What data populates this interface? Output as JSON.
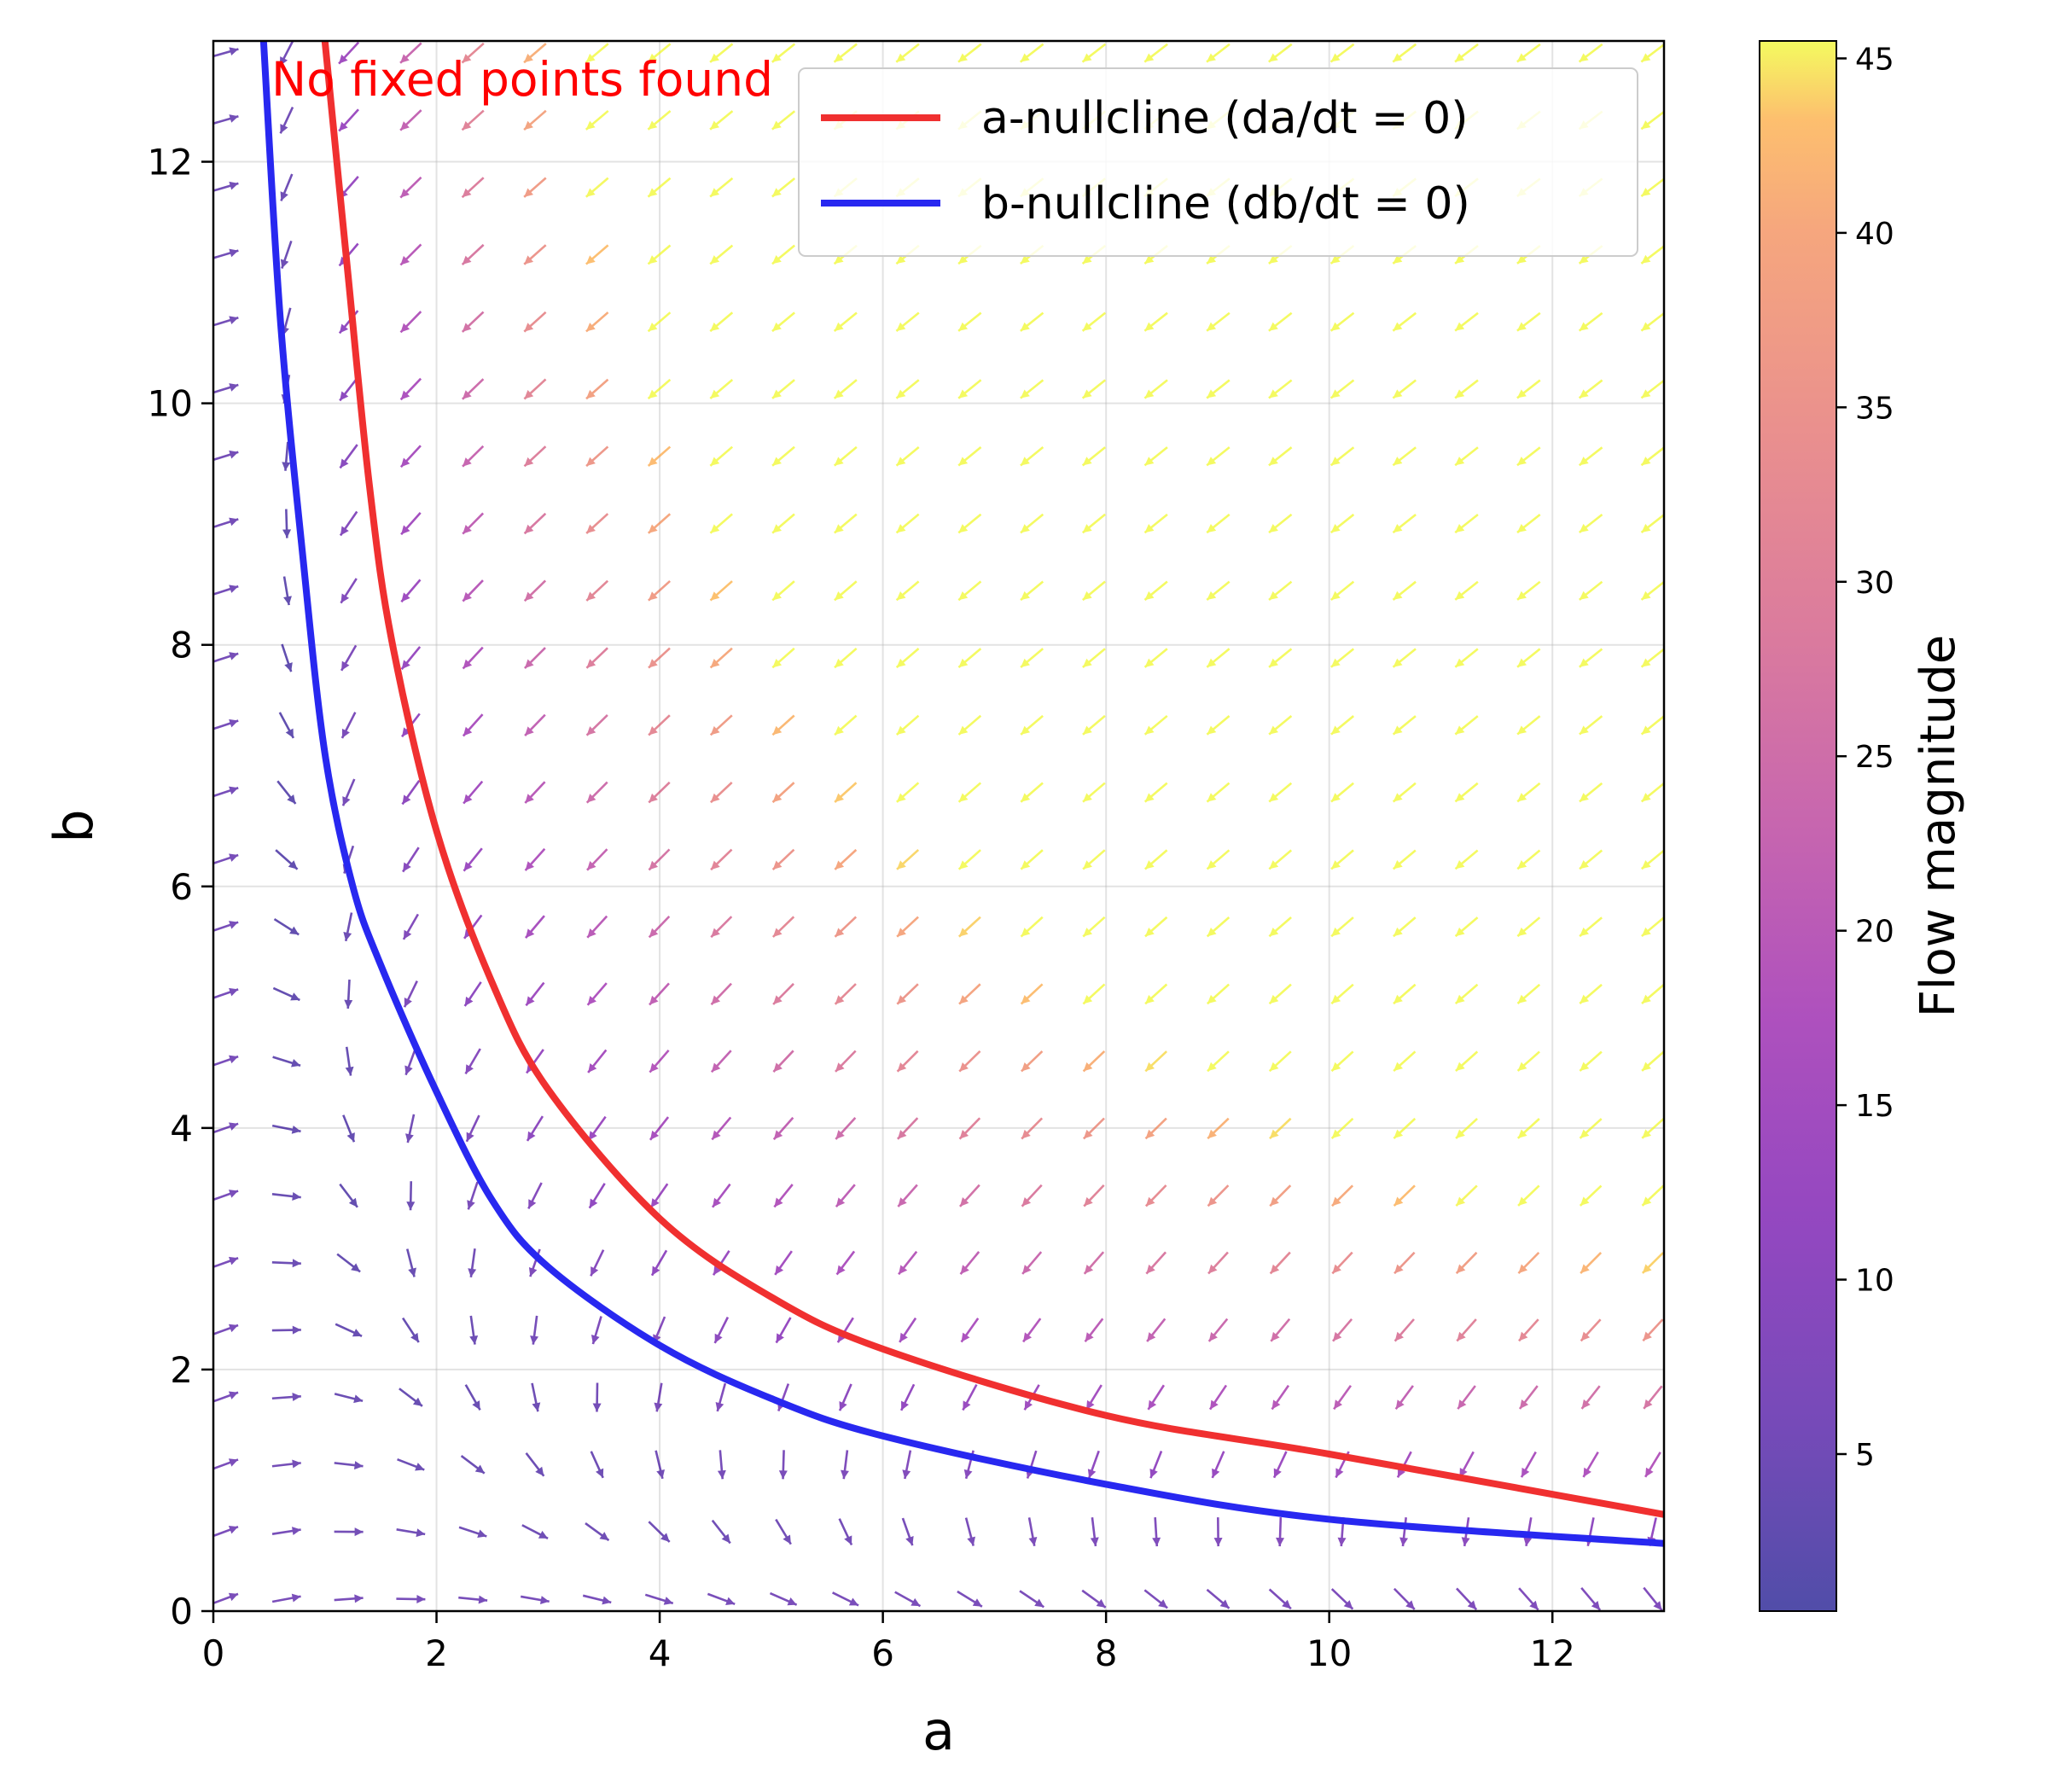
{
  "chart_data": {
    "type": "vector-field",
    "title": "",
    "xlabel": "a",
    "ylabel": "b",
    "xlim": [
      0,
      13
    ],
    "ylim": [
      0,
      13
    ],
    "xticks": [
      "0",
      "2",
      "4",
      "6",
      "8",
      "10",
      "12"
    ],
    "yticks": [
      "0",
      "2",
      "4",
      "6",
      "8",
      "10",
      "12"
    ],
    "grid": true,
    "annotation": "No fixed points found",
    "legend": {
      "placement": "top-right",
      "entries": [
        {
          "label": "a-nullcline (da/dt = 0)",
          "color": "#f03030"
        },
        {
          "label": "b-nullcline (db/dt = 0)",
          "color": "#2828f0"
        }
      ]
    },
    "series": [
      {
        "name": "a-nullcline (da/dt = 0)",
        "color": "#f03030",
        "points": [
          [
            1.0,
            13.0
          ],
          [
            1.2,
            11.13
          ],
          [
            1.4,
            9.31
          ],
          [
            1.6,
            8.03
          ],
          [
            2.0,
            6.46
          ],
          [
            2.5,
            5.2
          ],
          [
            3.0,
            4.32
          ],
          [
            4.0,
            3.25
          ],
          [
            5.0,
            2.6
          ],
          [
            6.0,
            2.17
          ],
          [
            8.0,
            1.62
          ],
          [
            10.0,
            1.3
          ],
          [
            13.0,
            0.8
          ]
        ]
      },
      {
        "name": "b-nullcline (db/dt = 0)",
        "color": "#2828f0",
        "points": [
          [
            0.45,
            13.0
          ],
          [
            0.6,
            10.7
          ],
          [
            0.8,
            8.75
          ],
          [
            1.0,
            7.1
          ],
          [
            1.25,
            6.0
          ],
          [
            1.5,
            5.35
          ],
          [
            2.0,
            4.3
          ],
          [
            2.5,
            3.4
          ],
          [
            3.0,
            2.85
          ],
          [
            4.0,
            2.2
          ],
          [
            5.0,
            1.76
          ],
          [
            6.0,
            1.45
          ],
          [
            8.0,
            1.05
          ],
          [
            10.0,
            0.76
          ],
          [
            13.0,
            0.56
          ]
        ]
      }
    ],
    "quiver": {
      "x_range": [
        0.1,
        12.9
      ],
      "y_range": [
        0.1,
        12.9
      ],
      "grid_size": 24,
      "description": "Flow field arrows colored by magnitude"
    },
    "colorbar": {
      "label": "Flow magnitude",
      "range": [
        0.5,
        45.5
      ],
      "ticks": [
        "5",
        "10",
        "15",
        "20",
        "25",
        "30",
        "35",
        "40",
        "45"
      ],
      "tick_values": [
        5,
        10,
        15,
        20,
        25,
        30,
        35,
        40,
        45
      ],
      "colormap": "plasma"
    }
  }
}
